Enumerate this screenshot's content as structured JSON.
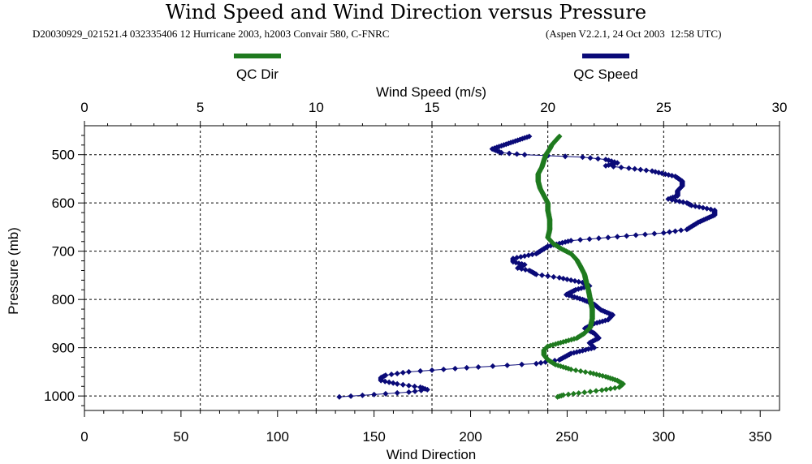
{
  "header": {
    "title": "Wind Speed and Wind Direction versus Pressure",
    "subtitle_left": "D20030929_021521.4 032335406 12 Hurricane 2003, h2003 Convair 580, C-FNRC",
    "subtitle_right": "(Aspen V2.2.1, 24 Oct 2003  12:58 UTC)"
  },
  "colors": {
    "dir": "#1f7a1f",
    "speed": "#0a0a78",
    "grid": "#000000"
  },
  "chart_data": {
    "type": "line",
    "title": "Wind Speed and Wind Direction versus Pressure",
    "top_axis": {
      "label": "Wind Speed (m/s)",
      "range": [
        0,
        30
      ],
      "ticks": [
        0,
        5,
        10,
        15,
        20,
        25,
        30
      ]
    },
    "bottom_axis": {
      "label": "Wind Direction",
      "range": [
        0,
        360
      ],
      "ticks": [
        0,
        50,
        100,
        150,
        200,
        250,
        300,
        350
      ]
    },
    "y_axis": {
      "label": "Pressure (mb)",
      "range": [
        440,
        1030
      ],
      "inverted": true,
      "ticks": [
        500,
        600,
        700,
        800,
        900,
        1000
      ]
    },
    "grid": true,
    "legend": [
      {
        "name": "QC Dir",
        "color": "#1f7a1f"
      },
      {
        "name": "QC Speed",
        "color": "#0a0a78"
      }
    ],
    "series": [
      {
        "name": "QC Dir",
        "axis": "bottom",
        "unit": "deg",
        "points": [
          [
            246,
            462
          ],
          [
            242,
            480
          ],
          [
            241,
            488
          ],
          [
            239,
            500
          ],
          [
            238,
            512
          ],
          [
            237,
            525
          ],
          [
            235,
            540
          ],
          [
            235,
            555
          ],
          [
            236,
            570
          ],
          [
            238,
            585
          ],
          [
            240,
            600
          ],
          [
            240,
            615
          ],
          [
            241,
            635
          ],
          [
            241,
            655
          ],
          [
            240,
            672
          ],
          [
            243,
            685
          ],
          [
            247,
            695
          ],
          [
            252,
            705
          ],
          [
            255,
            718
          ],
          [
            257,
            732
          ],
          [
            259,
            748
          ],
          [
            260,
            765
          ],
          [
            261,
            780
          ],
          [
            262,
            800
          ],
          [
            263,
            820
          ],
          [
            263,
            840
          ],
          [
            262,
            858
          ],
          [
            259,
            870
          ],
          [
            255,
            880
          ],
          [
            248,
            888
          ],
          [
            240,
            897
          ],
          [
            238,
            905
          ],
          [
            238,
            915
          ],
          [
            240,
            925
          ],
          [
            244,
            935
          ],
          [
            252,
            945
          ],
          [
            262,
            952
          ],
          [
            270,
            960
          ],
          [
            276,
            968
          ],
          [
            279,
            975
          ],
          [
            277,
            982
          ],
          [
            268,
            988
          ],
          [
            256,
            994
          ],
          [
            248,
            998
          ],
          [
            245,
            1002
          ]
        ]
      },
      {
        "name": "QC Speed",
        "axis": "top",
        "unit": "m/s",
        "points": [
          [
            19.2,
            462
          ],
          [
            17.6,
            488
          ],
          [
            18.0,
            496
          ],
          [
            19.0,
            500
          ],
          [
            20.0,
            502
          ],
          [
            21.5,
            505
          ],
          [
            22.5,
            510
          ],
          [
            23.0,
            517
          ],
          [
            22.5,
            523
          ],
          [
            23.5,
            528
          ],
          [
            24.5,
            534
          ],
          [
            25.5,
            545
          ],
          [
            25.8,
            555
          ],
          [
            25.8,
            565
          ],
          [
            25.6,
            575
          ],
          [
            25.6,
            585
          ],
          [
            25.2,
            592
          ],
          [
            26.0,
            600
          ],
          [
            26.2,
            605
          ],
          [
            27.2,
            615
          ],
          [
            27.2,
            625
          ],
          [
            26.5,
            640
          ],
          [
            26.0,
            655
          ],
          [
            25.0,
            662
          ],
          [
            23.0,
            670
          ],
          [
            21.0,
            678
          ],
          [
            20.0,
            690
          ],
          [
            19.5,
            705
          ],
          [
            18.5,
            715
          ],
          [
            18.5,
            722
          ],
          [
            19.0,
            728
          ],
          [
            18.7,
            735
          ],
          [
            19.2,
            740
          ],
          [
            19.5,
            748
          ],
          [
            20.5,
            755
          ],
          [
            21.5,
            765
          ],
          [
            21.8,
            772
          ],
          [
            21.2,
            780
          ],
          [
            20.8,
            790
          ],
          [
            21.5,
            800
          ],
          [
            22.0,
            810
          ],
          [
            22.3,
            822
          ],
          [
            22.8,
            832
          ],
          [
            22.6,
            842
          ],
          [
            22.0,
            850
          ],
          [
            21.6,
            860
          ],
          [
            22.0,
            870
          ],
          [
            22.2,
            880
          ],
          [
            21.8,
            890
          ],
          [
            22.0,
            900
          ],
          [
            21.0,
            912
          ],
          [
            20.5,
            925
          ],
          [
            19.5,
            933
          ],
          [
            17.0,
            940
          ],
          [
            15.5,
            945
          ],
          [
            14.0,
            950
          ],
          [
            13.0,
            957
          ],
          [
            12.8,
            962
          ],
          [
            12.8,
            968
          ],
          [
            13.5,
            975
          ],
          [
            14.5,
            982
          ],
          [
            14.8,
            987
          ],
          [
            14.0,
            992
          ],
          [
            12.5,
            997
          ],
          [
            11.0,
            1002
          ]
        ]
      }
    ]
  }
}
